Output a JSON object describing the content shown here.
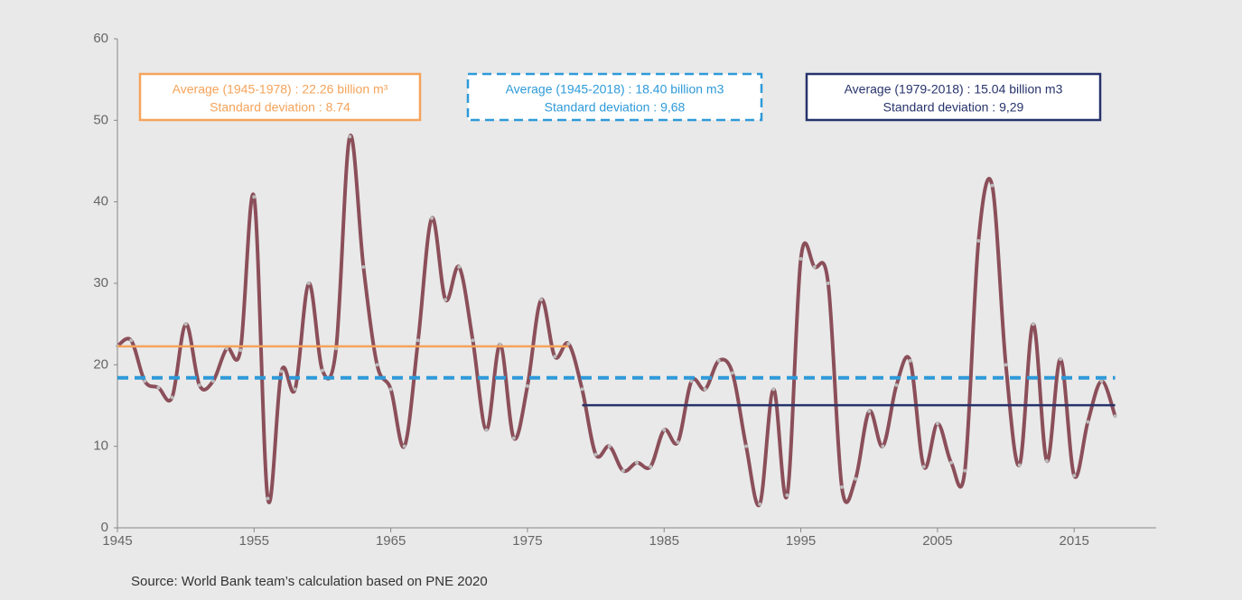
{
  "chart_data": {
    "type": "line",
    "x": [
      1945,
      1946,
      1947,
      1948,
      1949,
      1950,
      1951,
      1952,
      1953,
      1954,
      1955,
      1956,
      1957,
      1958,
      1959,
      1960,
      1961,
      1962,
      1963,
      1964,
      1965,
      1966,
      1967,
      1968,
      1969,
      1970,
      1971,
      1972,
      1973,
      1974,
      1975,
      1976,
      1977,
      1978,
      1979,
      1980,
      1981,
      1982,
      1983,
      1984,
      1985,
      1986,
      1987,
      1988,
      1989,
      1990,
      1991,
      1992,
      1993,
      1994,
      1995,
      1996,
      1997,
      1998,
      1999,
      2000,
      2001,
      2002,
      2003,
      2004,
      2005,
      2006,
      2007,
      2008,
      2009,
      2010,
      2011,
      2012,
      2013,
      2014,
      2015,
      2016,
      2017,
      2018
    ],
    "series": [
      {
        "color": "#8b4f5a",
        "values": [
          22.3,
          23,
          18,
          17.2,
          16,
          25,
          17.5,
          18,
          22,
          21.8,
          40.6,
          3.6,
          19.2,
          17,
          30,
          19.3,
          22,
          48,
          32,
          20,
          17,
          10,
          23,
          38,
          28,
          32,
          23,
          12,
          22.5,
          11,
          17.4,
          28,
          21,
          22.6,
          17,
          9,
          10,
          7,
          8,
          7.5,
          12,
          10.5,
          18,
          17,
          20.5,
          19,
          10,
          2.9,
          17,
          4,
          33,
          32,
          30,
          5,
          6,
          14.3,
          10,
          17.5,
          20.5,
          7.5,
          12.8,
          8,
          7,
          35.2,
          42,
          20,
          7.7,
          25,
          8.2,
          20.7,
          6.4,
          13,
          18,
          13.7
        ]
      }
    ],
    "reference_lines": [
      {
        "label": "Average (1945-1978) : 22.26 billion m³",
        "sublabel": "Standard deviation : 8.74",
        "value": 22.26,
        "from": 1945,
        "to": 1978,
        "color": "#f5a35a",
        "style": "solid"
      },
      {
        "label": "Average (1945-2018) : 18.40 billion m3",
        "sublabel": "Standard deviation : 9,68",
        "value": 18.4,
        "from": 1945,
        "to": 2018,
        "color": "#2e9ad9",
        "style": "dashed"
      },
      {
        "label": "Average (1979-2018) : 15.04 billion m3",
        "sublabel": "Standard deviation : 9,29",
        "value": 15.04,
        "from": 1979,
        "to": 2018,
        "color": "#27336b",
        "style": "solid"
      }
    ],
    "xlim": [
      1945,
      2021
    ],
    "xticks": [
      1945,
      1955,
      1965,
      1975,
      1985,
      1995,
      2005,
      2015
    ],
    "ylim": [
      0,
      60
    ],
    "yticks": [
      0,
      10,
      20,
      30,
      40,
      50,
      60
    ],
    "source": "Source: World Bank team’s calculation based on PNE 2020"
  }
}
